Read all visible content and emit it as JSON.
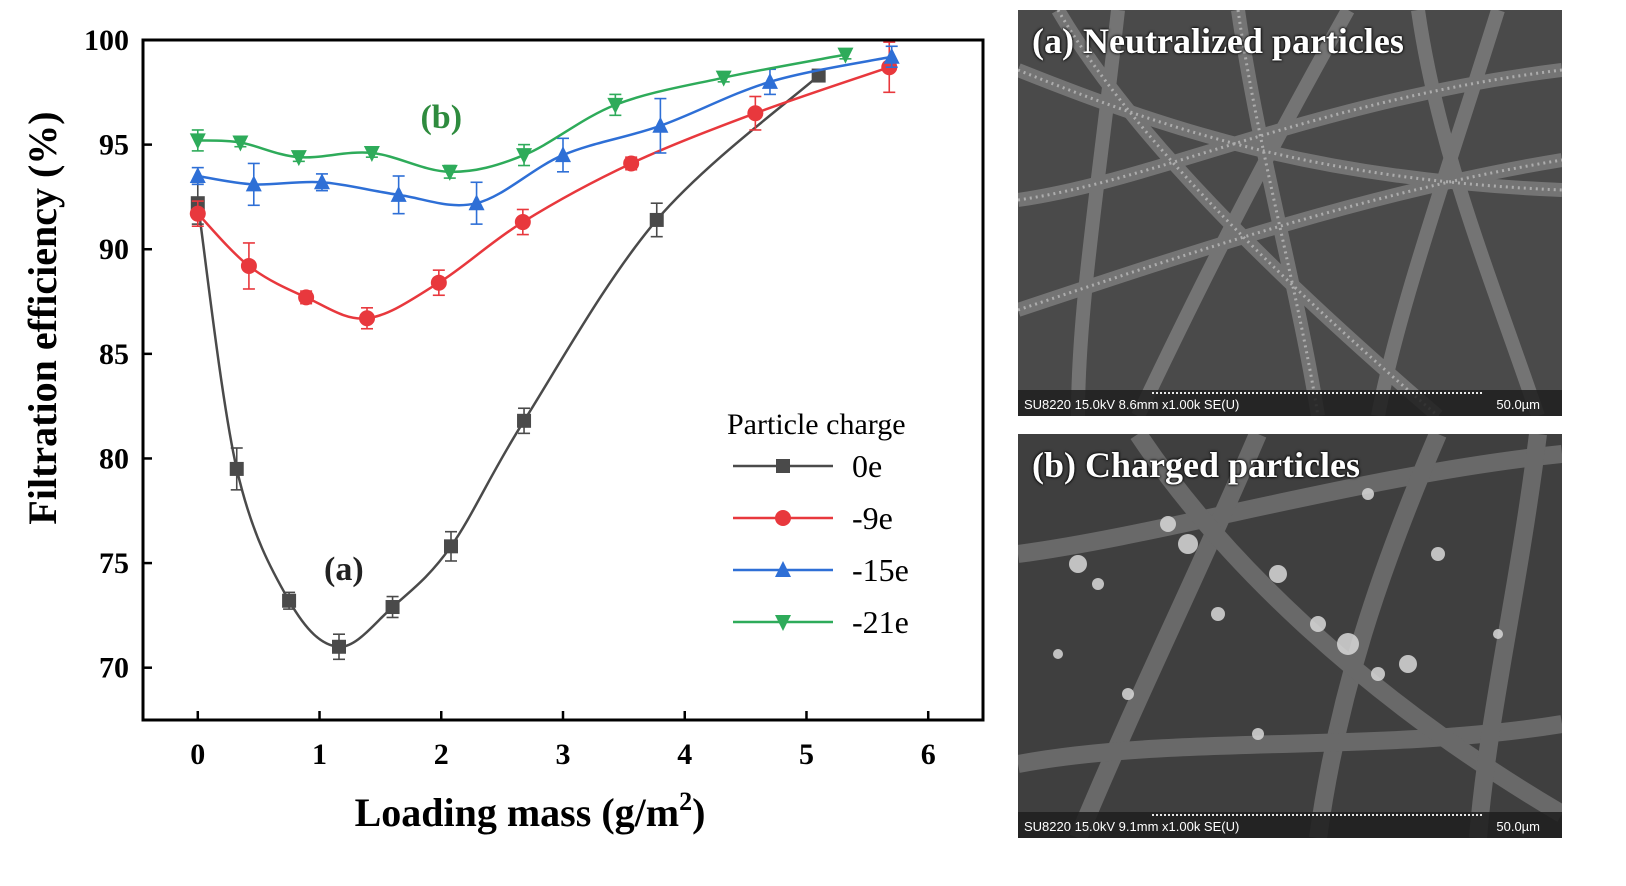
{
  "chart_data": {
    "type": "line",
    "xlabel": "Loading mass (g/m",
    "xlabel_sup": "2",
    "xlabel_end": ")",
    "ylabel": "Filtration efficiency (%)",
    "xlim": [
      -0.45,
      6.45
    ],
    "ylim": [
      67.5,
      100
    ],
    "x_ticks": [
      "0",
      "1",
      "2",
      "3",
      "4",
      "5",
      "6"
    ],
    "y_ticks": [
      "70",
      "75",
      "80",
      "85",
      "90",
      "95",
      "100"
    ],
    "grid": false,
    "legend_title": "Particle charge",
    "legend_position": "lower-right",
    "annotations": [
      {
        "text": "(a)",
        "x": 1.2,
        "y": 74.2,
        "color": "#222222"
      },
      {
        "text": "(b)",
        "x": 2.0,
        "y": 95.8,
        "color": "#2e8b3e"
      }
    ],
    "series": [
      {
        "name": "0e",
        "color": "#4a4a4a",
        "marker": "square",
        "x": [
          0,
          0.32,
          0.75,
          1.16,
          1.6,
          2.08,
          2.68,
          3.77,
          5.1
        ],
        "y": [
          92.2,
          79.5,
          73.2,
          71.0,
          72.9,
          75.8,
          81.8,
          91.4,
          98.3
        ],
        "err": [
          1.0,
          1.0,
          0.4,
          0.6,
          0.5,
          0.7,
          0.6,
          0.8,
          0.2
        ]
      },
      {
        "name": "-9e",
        "color": "#e8383d",
        "marker": "circle",
        "x": [
          0,
          0.42,
          0.89,
          1.39,
          1.98,
          2.67,
          3.56,
          4.58,
          5.68
        ],
        "y": [
          91.7,
          89.2,
          87.7,
          86.7,
          88.4,
          91.3,
          94.1,
          96.5,
          98.7
        ],
        "err": [
          0.6,
          1.1,
          0.3,
          0.5,
          0.6,
          0.6,
          0.3,
          0.8,
          1.2
        ]
      },
      {
        "name": "-15e",
        "color": "#2e6fd6",
        "marker": "triangle-up",
        "x": [
          0,
          0.46,
          1.02,
          1.65,
          2.29,
          3.0,
          3.8,
          4.7,
          5.7
        ],
        "y": [
          93.5,
          93.1,
          93.2,
          92.6,
          92.2,
          94.5,
          95.9,
          98.0,
          99.2
        ],
        "err": [
          0.4,
          1.0,
          0.4,
          0.9,
          1.0,
          0.8,
          1.3,
          0.6,
          0.5
        ]
      },
      {
        "name": "-21e",
        "color": "#2eab5a",
        "marker": "triangle-down",
        "x": [
          0,
          0.35,
          0.83,
          1.43,
          2.07,
          2.68,
          3.43,
          4.32,
          5.32
        ],
        "y": [
          95.2,
          95.1,
          94.4,
          94.6,
          93.7,
          94.5,
          96.9,
          98.2,
          99.3
        ],
        "err": [
          0.5,
          0.2,
          0.2,
          0.2,
          0.3,
          0.5,
          0.5,
          0.2,
          0.2
        ]
      }
    ]
  },
  "sem_panels": [
    {
      "title": "(a) Neutralized particles",
      "info": "SU8220 15.0kV 8.6mm x1.00k SE(U)",
      "scale": "50.0µm"
    },
    {
      "title": "(b) Charged particles",
      "info": "SU8220 15.0kV 9.1mm x1.00k SE(U)",
      "scale": "50.0µm"
    }
  ]
}
